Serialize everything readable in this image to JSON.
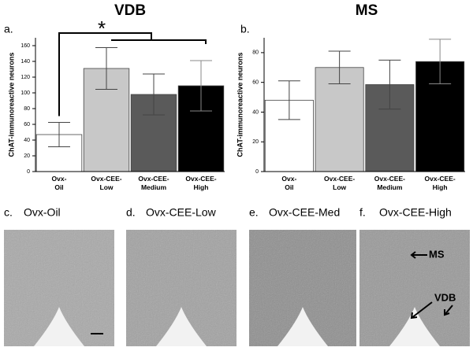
{
  "chart_data": [
    {
      "type": "bar",
      "panel": "a.",
      "title": "VDB",
      "y_label": "ChAT-immunoreactive neurons",
      "categories": [
        [
          "Ovx-",
          "Oil"
        ],
        [
          "Ovx-CEE-",
          "Low"
        ],
        [
          "Ovx-CEE-",
          "Medium"
        ],
        [
          "Ovx-CEE-",
          "High"
        ]
      ],
      "values": [
        47,
        131,
        98,
        109
      ],
      "errors": [
        15.5,
        26.5,
        26,
        32
      ],
      "colors": [
        "#ffffff",
        "#c8c8c8",
        "#5a5a5a",
        "#000000"
      ],
      "ylim": [
        0,
        170
      ],
      "yticks": [
        0,
        20,
        40,
        60,
        80,
        100,
        120,
        140,
        160
      ],
      "annotation": "*"
    },
    {
      "type": "bar",
      "panel": "b.",
      "title": "MS",
      "y_label": "ChAT-immunoreactive neurons",
      "categories": [
        [
          "Ovx-",
          "Oil"
        ],
        [
          "Ovx-CEE-",
          "Low"
        ],
        [
          "Ovx-CEE-",
          "Medium"
        ],
        [
          "Ovx-CEE-",
          "High"
        ]
      ],
      "values": [
        48,
        70,
        58.5,
        74
      ],
      "errors": [
        13,
        11,
        16.5,
        15
      ],
      "colors": [
        "#ffffff",
        "#c8c8c8",
        "#5a5a5a",
        "#000000"
      ],
      "ylim": [
        0,
        90
      ],
      "yticks": [
        0,
        20,
        40,
        60,
        80
      ]
    }
  ],
  "micrographs": [
    {
      "letter": "c.",
      "caption": "Ovx-Oil"
    },
    {
      "letter": "d.",
      "caption": "Ovx-CEE-Low"
    },
    {
      "letter": "e.",
      "caption": "Ovx-CEE-Med"
    },
    {
      "letter": "f.",
      "caption": "Ovx-CEE-High",
      "labels": [
        "MS",
        "VDB"
      ]
    }
  ]
}
